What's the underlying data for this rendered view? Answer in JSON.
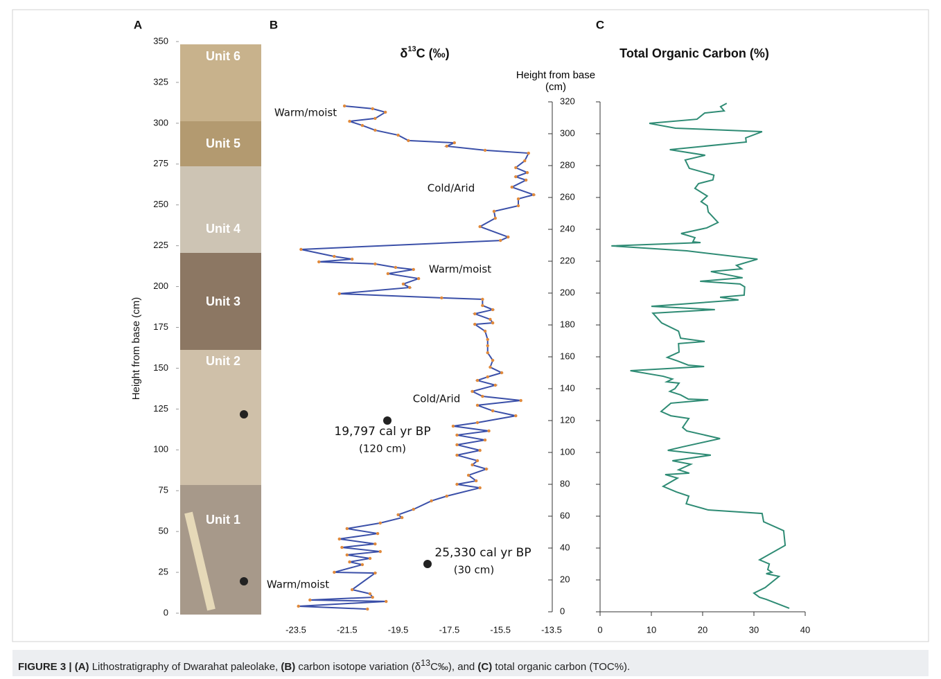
{
  "chart_data": [
    {
      "type": "photo-column",
      "panel": "A",
      "ylabel": "Height from base (cm)",
      "ylim": [
        0,
        350
      ],
      "yticks": [
        0,
        25,
        50,
        75,
        100,
        125,
        150,
        175,
        200,
        225,
        250,
        275,
        300,
        325,
        350
      ],
      "units": [
        "Unit 6",
        "Unit 5",
        "Unit 4",
        "Unit 3",
        "Unit 2",
        "Unit 1"
      ]
    },
    {
      "type": "line",
      "panel": "B",
      "title": [
        "δ",
        "13",
        "C (‰)"
      ],
      "ylabel": "Height from base (cm)",
      "xlim": [
        -23.5,
        -13.5
      ],
      "xticks": [
        -23.5,
        -21.5,
        -19.5,
        -17.5,
        -15.5,
        -13.5
      ],
      "ylim": [
        0,
        320
      ],
      "yticks": [
        0,
        20,
        40,
        60,
        80,
        100,
        120,
        140,
        160,
        180,
        200,
        220,
        240,
        260,
        280,
        300,
        320
      ],
      "series": [
        {
          "color": "#3a4fa8",
          "marker_color": "#e08a3c",
          "x": [
            -21.6,
            -20.5,
            -20.0,
            -20.4,
            -21.4,
            -20.9,
            -20.4,
            -19.5,
            -19.1,
            -17.3,
            -17.6,
            -16.1,
            -14.4,
            -14.55,
            -14.9,
            -14.45,
            -14.9,
            -14.5,
            -15.05,
            -14.2,
            -14.8,
            -14.8,
            -15.75,
            -15.7,
            -16.3,
            -15.2,
            -15.5,
            -23.3,
            -22.0,
            -21.3,
            -22.6,
            -20.4,
            -19.6,
            -18.9,
            -19.9,
            -18.7,
            -19.3,
            -19.05,
            -21.8,
            -17.8,
            -16.2,
            -16.2,
            -15.8,
            -16.5,
            -15.9,
            -15.8,
            -16.5,
            -16.1,
            -16.0,
            -16.0,
            -16.0,
            -15.8,
            -15.9,
            -15.45,
            -16.0,
            -16.4,
            -15.7,
            -16.6,
            -16.2,
            -14.7,
            -16.4,
            -15.8,
            -14.9,
            -16.4,
            -17.35,
            -15.95,
            -17.2,
            -16.1,
            -17.2,
            -16.3,
            -17.2,
            -16.4,
            -16.6,
            -16.05,
            -16.75,
            -16.45,
            -17.2,
            -16.3,
            -17.6,
            -18.2,
            -18.9,
            -19.5,
            -19.35,
            -20.2,
            -21.5,
            -20.3,
            -21.8,
            -20.4,
            -21.7,
            -20.2,
            -21.5,
            -20.6,
            -21.4,
            -20.9,
            -22.0,
            -20.4,
            -21.3,
            -20.6,
            -20.5,
            -22.95,
            -19.97,
            -23.4,
            -20.7
          ],
          "values": [
            317.4,
            315.7,
            313.5,
            309.6,
            307.8,
            305.2,
            302.2,
            299.1,
            295.7,
            294.3,
            292.2,
            289.6,
            287.8,
            283.0,
            278.7,
            275.6,
            273.0,
            270.9,
            266.5,
            261.7,
            259.1,
            254.8,
            251.3,
            247.0,
            241.7,
            235.2,
            233.0,
            227.4,
            223.0,
            221.3,
            219.6,
            218.3,
            216.1,
            214.8,
            212.2,
            209.1,
            205.7,
            203.5,
            199.6,
            197.0,
            196.1,
            192.2,
            189.6,
            187.0,
            183.5,
            181.3,
            180.4,
            176.1,
            170.9,
            167.0,
            162.6,
            157.8,
            153.5,
            150.0,
            147.4,
            145.2,
            142.2,
            138.3,
            135.2,
            132.6,
            129.6,
            126.1,
            123.0,
            118.7,
            116.5,
            113.5,
            110.9,
            107.8,
            104.8,
            101.3,
            98.3,
            94.8,
            92.2,
            89.6,
            85.7,
            82.2,
            80.0,
            77.8,
            72.6,
            69.6,
            64.3,
            60.9,
            59.1,
            55.7,
            52.2,
            49.1,
            45.7,
            42.6,
            40.4,
            37.8,
            35.7,
            33.5,
            31.3,
            29.6,
            24.8,
            24.3,
            13.9,
            11.3,
            9.1,
            7.4,
            6.5,
            3.5,
            1.7
          ]
        }
      ],
      "annotations": [
        "Warm/moist",
        "Cold/Arid",
        "Warm/moist",
        "Cold/Arid",
        "Warm/moist"
      ],
      "dated_samples": [
        {
          "age": "19,797 cal yr BP",
          "depth_label": "(120 cm)",
          "height": 120
        },
        {
          "age": "25,330 cal yr BP",
          "depth_label": "(30 cm)",
          "height": 30
        }
      ]
    },
    {
      "type": "line",
      "panel": "C",
      "title": "Total Organic Carbon (%)",
      "xlim": [
        0,
        40
      ],
      "xticks": [
        0,
        10,
        20,
        30,
        40
      ],
      "ylim": [
        0,
        320
      ],
      "series": [
        {
          "color": "#2e8b74",
          "x": [
            24.7,
            23.5,
            24.2,
            20.4,
            18.9,
            9.6,
            14.7,
            18.6,
            31.6,
            28.4,
            28.5,
            13.6,
            20.5,
            16.6,
            17.4,
            22.2,
            22.0,
            19.2,
            18.5,
            20.9,
            19.7,
            20.9,
            21.1,
            23.0,
            20.8,
            15.8,
            18.5,
            18.1,
            19.6,
            2.2,
            16.9,
            30.7,
            26.6,
            27.6,
            21.6,
            27.8,
            19.5,
            27.3,
            28.2,
            28.1,
            23.4,
            27.0,
            10.0,
            22.4,
            10.3,
            12.0,
            15.3,
            15.7,
            20.4,
            15.3,
            15.4,
            13.1,
            15.1,
            17.2,
            20.3,
            5.9,
            12.3,
            14.1,
            13.0,
            15.4,
            14.6,
            13.6,
            15.7,
            17.2,
            21.1,
            13.8,
            11.9,
            13.8,
            17.3,
            16.1,
            16.9,
            23.4,
            16.1,
            13.2,
            21.6,
            14.1,
            17.7,
            15.3,
            17.4,
            12.7,
            15.1,
            12.3,
            14.9,
            17.3,
            16.8,
            21.1,
            31.6,
            31.9,
            35.8,
            36.1,
            31.1,
            33.0,
            32.7,
            33.5,
            32.4,
            34.9,
            32.2,
            30.0,
            31.1,
            32.4,
            36.9
          ],
          "values": [
            319.1,
            317.0,
            314.3,
            313.0,
            309.1,
            306.5,
            303.5,
            303.0,
            301.3,
            297.4,
            294.8,
            290.0,
            286.5,
            283.5,
            278.3,
            274.0,
            271.0,
            268.7,
            265.7,
            260.9,
            257.4,
            254.8,
            250.9,
            244.3,
            240.9,
            237.4,
            234.8,
            232.2,
            231.7,
            229.6,
            226.5,
            221.3,
            217.4,
            215.2,
            213.5,
            209.6,
            207.4,
            205.7,
            203.9,
            198.7,
            197.4,
            195.7,
            191.7,
            189.6,
            187.4,
            181.3,
            176.1,
            171.7,
            169.6,
            168.3,
            163.0,
            159.6,
            157.4,
            154.8,
            153.9,
            151.3,
            147.8,
            146.1,
            144.3,
            143.5,
            140.0,
            138.3,
            136.1,
            133.5,
            133.0,
            130.9,
            125.7,
            123.0,
            121.3,
            115.7,
            113.5,
            108.7,
            103.5,
            101.3,
            98.3,
            94.8,
            92.6,
            89.1,
            87.0,
            86.1,
            83.9,
            78.7,
            75.2,
            72.6,
            67.8,
            63.9,
            61.7,
            56.5,
            50.9,
            41.7,
            32.6,
            30.0,
            26.5,
            24.8,
            23.9,
            22.2,
            15.2,
            11.7,
            9.1,
            7.8,
            2.2
          ]
        }
      ]
    }
  ],
  "caption": [
    "FIGURE 3 | ",
    "(A)",
    " Lithostratigraphy of Dwarahat paleolake, ",
    "(B)",
    " carbon isotope variation (δ",
    "13",
    "C‰), and ",
    "(C)",
    " total organic carbon (TOC%)."
  ]
}
